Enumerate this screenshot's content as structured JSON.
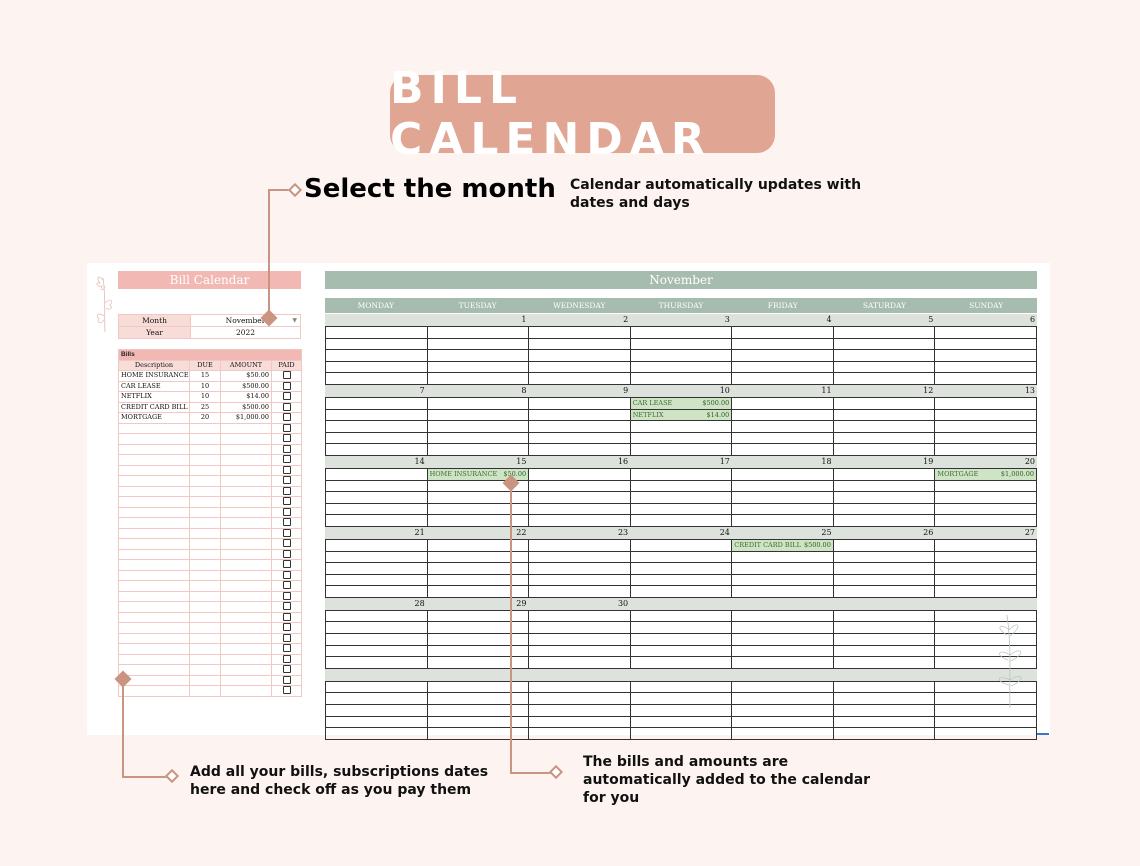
{
  "banner": {
    "title": "BILL CALENDAR"
  },
  "callouts": {
    "select_month": "Select the month",
    "calendar_updates": "Calendar automatically updates with dates and days",
    "add_bills": "Add all your bills, subscriptions dates here and check off as you pay them",
    "auto_added": "The bills and amounts are automatically added to the calendar for you"
  },
  "left_panel": {
    "title": "Bill Calendar",
    "month_label": "Month",
    "month_value": "November",
    "year_label": "Year",
    "year_value": "2022",
    "bills_section": "Bills",
    "headers": {
      "description": "Description",
      "due": "DUE",
      "amount": "AMOUNT",
      "paid": "PAID"
    },
    "bills": [
      {
        "description": "HOME INSURANCE",
        "due": "15",
        "amount": "$50.00"
      },
      {
        "description": "CAR LEASE",
        "due": "10",
        "amount": "$500.00"
      },
      {
        "description": "NETFLIX",
        "due": "10",
        "amount": "$14.00"
      },
      {
        "description": "CREDIT CARD BILL",
        "due": "25",
        "amount": "$500.00"
      },
      {
        "description": "MORTGAGE",
        "due": "20",
        "amount": "$1,000.00"
      }
    ]
  },
  "calendar": {
    "month": "November",
    "weekdays": [
      "MONDAY",
      "TUESDAY",
      "WEDNESDAY",
      "THURSDAY",
      "FRIDAY",
      "SATURDAY",
      "SUNDAY"
    ],
    "weeks": [
      [
        "",
        "1",
        "2",
        "3",
        "4",
        "5",
        "6"
      ],
      [
        "7",
        "8",
        "9",
        "10",
        "11",
        "12",
        "13"
      ],
      [
        "14",
        "15",
        "16",
        "17",
        "18",
        "19",
        "20"
      ],
      [
        "21",
        "22",
        "23",
        "24",
        "25",
        "26",
        "27"
      ],
      [
        "28",
        "29",
        "30",
        "",
        "",
        "",
        ""
      ],
      [
        "",
        "",
        "",
        "",
        "",
        "",
        ""
      ]
    ],
    "entries": [
      {
        "week": 1,
        "day": 3,
        "slot": 0,
        "name": "CAR LEASE",
        "amount": "$500.00"
      },
      {
        "week": 1,
        "day": 3,
        "slot": 1,
        "name": "NETFLIX",
        "amount": "$14.00"
      },
      {
        "week": 2,
        "day": 1,
        "slot": 0,
        "name": "HOME INSURANCE",
        "amount": "$50.00"
      },
      {
        "week": 2,
        "day": 6,
        "slot": 0,
        "name": "MORTGAGE",
        "amount": "$1,000.00"
      },
      {
        "week": 3,
        "day": 4,
        "slot": 0,
        "name": "CREDIT CARD BILL",
        "amount": "$500.00"
      }
    ]
  },
  "colors": {
    "banner": "#e0a593",
    "panel_pink": "#f2b9b4",
    "sage": "#a6bcae",
    "bill_green": "#cfe4c4",
    "annotation": "#c99480"
  }
}
